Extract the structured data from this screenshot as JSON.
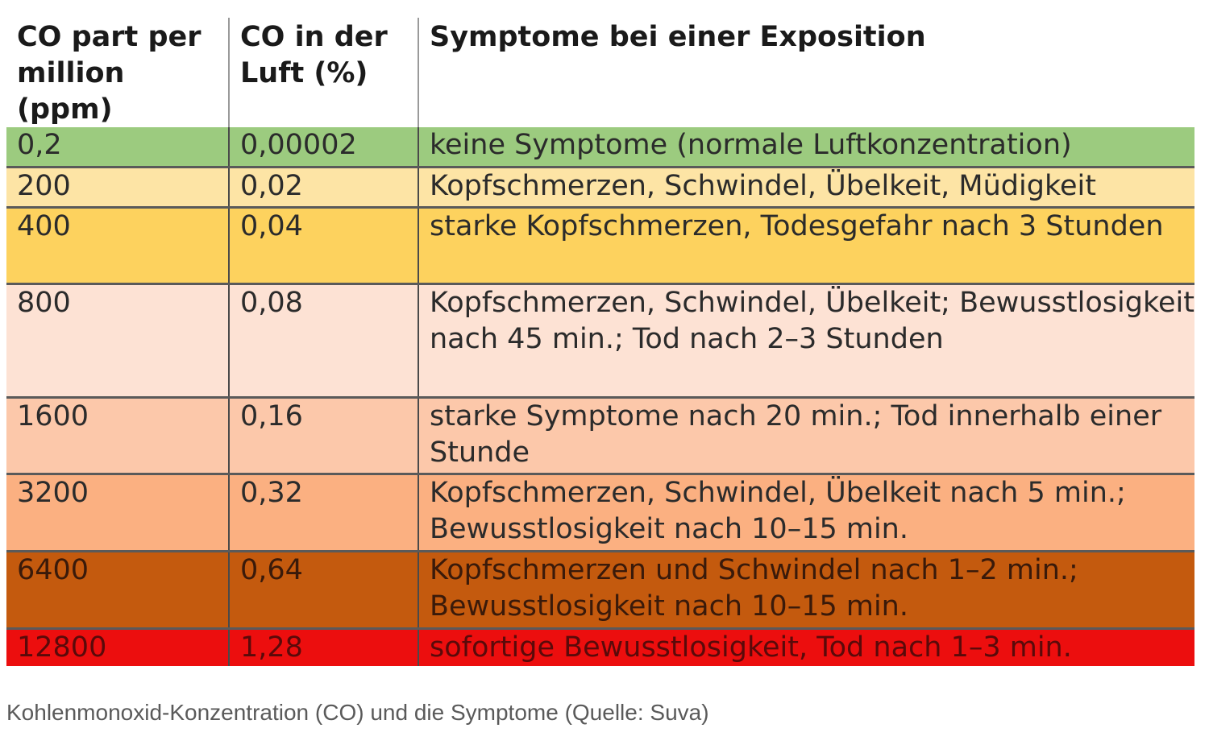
{
  "table": {
    "headers": [
      "CO part per million (ppm)",
      "CO in der Luft (%)",
      "Symptome bei einer Exposition"
    ],
    "rows": [
      {
        "ppm": "0,2",
        "percent": "0,00002",
        "symptoms": "keine Symptome (normale Luftkonzentration)",
        "color": "#9ccb7f",
        "text_color": "#2b2b2b"
      },
      {
        "ppm": "200",
        "percent": "0,02",
        "symptoms": "Kopfschmerzen, Schwindel, Übelkeit, Müdigkeit",
        "color": "#fde4a5",
        "text_color": "#2b2b2b"
      },
      {
        "ppm": "400",
        "percent": "0,04",
        "symptoms": "starke Kopfschmerzen, Todesgefahr nach 3 Stunden",
        "color": "#fdd25e",
        "text_color": "#2b2b2b"
      },
      {
        "ppm": "800",
        "percent": "0,08",
        "symptoms": "Kopfschmerzen, Schwindel, Übelkeit; Bewusstlosigkeit nach 45 min.; Tod nach 2–3 Stunden",
        "color": "#fde2d4",
        "text_color": "#2b2b2b"
      },
      {
        "ppm": "1600",
        "percent": "0,16",
        "symptoms": "starke Symptome nach 20 min.; Tod innerhalb einer Stunde",
        "color": "#fcc8aa",
        "text_color": "#2b2b2b"
      },
      {
        "ppm": "3200",
        "percent": "0,32",
        "symptoms": "Kopfschmerzen, Schwindel, Übelkeit nach 5 min.; Bewusstlosigkeit nach 10–15 min.",
        "color": "#fbb081",
        "text_color": "#2b2b2b"
      },
      {
        "ppm": "6400",
        "percent": "0,64",
        "symptoms": "Kopfschmerzen und Schwindel nach 1–2 min.; Bewusstlosigkeit nach 10–15 min.",
        "color": "#c45a0e",
        "text_color": "#3a1a0a"
      },
      {
        "ppm": "12800",
        "percent": "1,28",
        "symptoms": "sofortige Bewusstlosigkeit, Tod nach 1–3 min.",
        "color": "#ec0e0e",
        "text_color": "#5a0a0a"
      }
    ]
  },
  "caption": "Kohlenmonoxid-Konzentration (CO) und die Symptome (Quelle: Suva)"
}
